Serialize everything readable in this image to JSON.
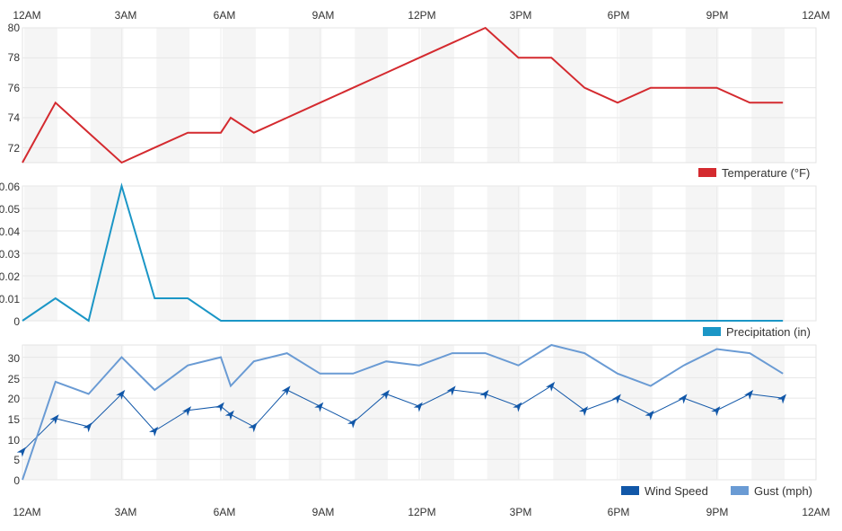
{
  "x_labels": [
    "12AM",
    "3AM",
    "6AM",
    "9AM",
    "12PM",
    "3PM",
    "6PM",
    "9PM",
    "12AM"
  ],
  "chart_data": [
    {
      "type": "line",
      "x": [
        0,
        1,
        2,
        3,
        4,
        5,
        6,
        6.3,
        7,
        8,
        9,
        10,
        11,
        12,
        13,
        14,
        15,
        16,
        17,
        18,
        19,
        20,
        21,
        22,
        23
      ],
      "series": [
        {
          "name": "Temperature (°F)",
          "color": "#d42a2f",
          "values": [
            71,
            75,
            73,
            71,
            72,
            73,
            73,
            74,
            73,
            74,
            75,
            76,
            77,
            78,
            79,
            80,
            78,
            78,
            76,
            75,
            76,
            76,
            76,
            75,
            75
          ]
        }
      ],
      "ylim": [
        71,
        80
      ],
      "y_ticks": [
        "72",
        "74",
        "76",
        "78",
        "80"
      ],
      "legend": "bottom-right"
    },
    {
      "type": "line",
      "x": [
        0,
        1,
        2,
        3,
        4,
        5,
        6,
        7,
        8,
        9,
        10,
        11,
        12,
        13,
        14,
        15,
        16,
        17,
        18,
        19,
        20,
        21,
        22,
        23
      ],
      "series": [
        {
          "name": "Precipitation (in)",
          "color": "#1b96c6",
          "values": [
            0,
            0.01,
            0,
            0.06,
            0.01,
            0.01,
            0,
            0,
            0,
            0,
            0,
            0,
            0,
            0,
            0,
            0,
            0,
            0,
            0,
            0,
            0,
            0,
            0,
            0
          ]
        }
      ],
      "ylim": [
        0,
        0.06
      ],
      "y_ticks": [
        "0",
        "0.01",
        "0.02",
        "0.03",
        "0.04",
        "0.05",
        "0.06"
      ],
      "legend": "bottom-right"
    },
    {
      "type": "line",
      "x": [
        0,
        1,
        2,
        3,
        4,
        5,
        6,
        6.3,
        7,
        8,
        9,
        10,
        11,
        12,
        13,
        14,
        15,
        16,
        17,
        18,
        19,
        20,
        21,
        22,
        23
      ],
      "series": [
        {
          "name": "Wind Speed",
          "color": "#1157a8",
          "values": [
            7,
            15,
            13,
            21,
            12,
            17,
            18,
            16,
            13,
            22,
            18,
            14,
            21,
            18,
            22,
            21,
            18,
            23,
            17,
            20,
            16,
            20,
            17,
            21,
            20
          ]
        },
        {
          "name": "Gust (mph)",
          "color": "#6a9bd4",
          "values": [
            0,
            24,
            21,
            30,
            22,
            28,
            30,
            23,
            29,
            31,
            26,
            26,
            29,
            28,
            31,
            31,
            28,
            33,
            31,
            26,
            23,
            28,
            32,
            31,
            26
          ]
        }
      ],
      "ylim": [
        0,
        33
      ],
      "y_ticks": [
        "0",
        "5",
        "10",
        "15",
        "20",
        "25",
        "30"
      ],
      "legend": "bottom-right"
    }
  ]
}
